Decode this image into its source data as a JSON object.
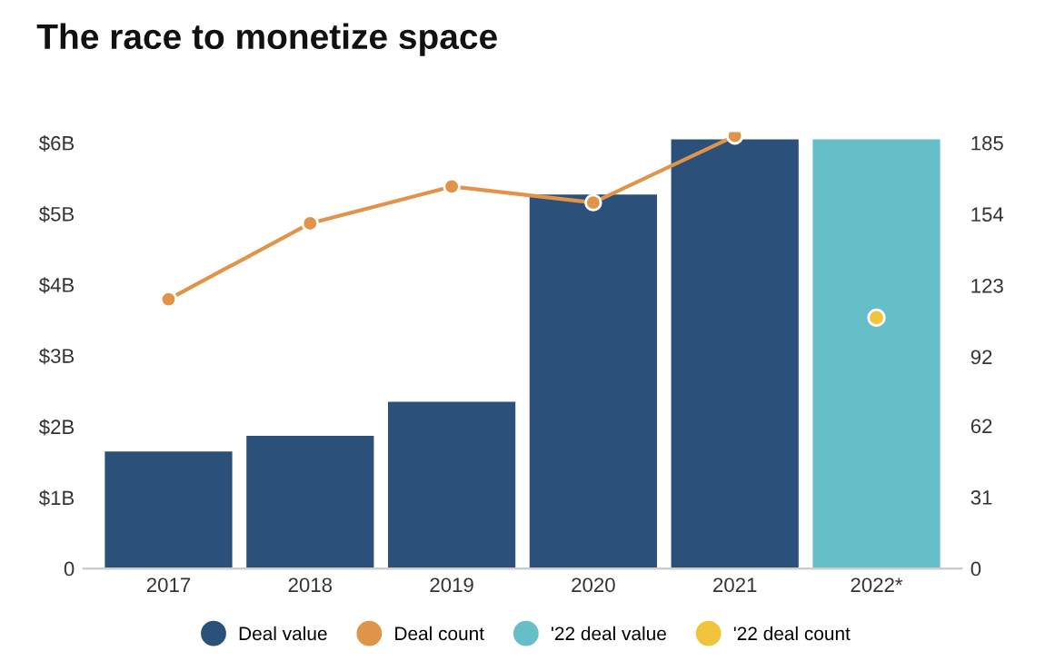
{
  "chart_data": {
    "type": "bar",
    "title": "The race to monetize space",
    "categories": [
      "2017",
      "2018",
      "2019",
      "2020",
      "2021",
      "2022*"
    ],
    "series": [
      {
        "name": "Deal value",
        "color": "#2b5079",
        "values": [
          1.65,
          1.87,
          2.35,
          5.27,
          6.05,
          null
        ]
      },
      {
        "name": "Deal count",
        "type": "line",
        "axis": "y2",
        "color": "#e0944a",
        "marker": "circle",
        "values": [
          117,
          150,
          166,
          159,
          188,
          null
        ]
      },
      {
        "name": "'22 deal value",
        "type": "bar",
        "color": "#66bfc8",
        "values": [
          null,
          null,
          null,
          null,
          null,
          6.05
        ]
      },
      {
        "name": "'22 deal count",
        "type": "scatter",
        "axis": "y2",
        "color": "#f0c43c",
        "marker": "circle",
        "values": [
          null,
          null,
          null,
          null,
          null,
          109
        ]
      }
    ],
    "ylim": [
      0,
      6.15
    ],
    "yticks": [
      {
        "value": 0,
        "label": "0"
      },
      {
        "value": 1,
        "label": "$1B"
      },
      {
        "value": 2,
        "label": "$2B"
      },
      {
        "value": 3,
        "label": "$3B"
      },
      {
        "value": 4,
        "label": "$4B"
      },
      {
        "value": 5,
        "label": "$5B"
      },
      {
        "value": 6,
        "label": "$6B"
      }
    ],
    "y2lim": [
      0,
      189.6
    ],
    "y2ticks": [
      0,
      31,
      62,
      92,
      123,
      154,
      185
    ],
    "grid": false,
    "legend": "bottom"
  }
}
